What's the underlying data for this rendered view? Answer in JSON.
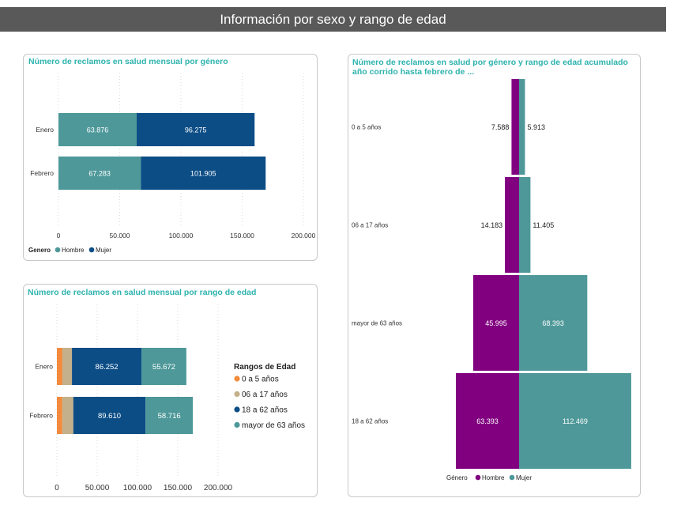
{
  "page": {
    "header": "Información por sexo y rango de edad"
  },
  "colors": {
    "hombre": "#4e9899",
    "mujer": "#0c4d86",
    "age_0_5": "#f28b3c",
    "age_6_17": "#c4b08a",
    "age_18_62": "#0c4d86",
    "age_63": "#4e9899",
    "funnel_hombre": "#80007f",
    "funnel_mujer": "#4e9899",
    "title": "#2eb3ae",
    "header_bg": "#595959"
  },
  "chart_data": [
    {
      "type": "bar",
      "stacked": true,
      "orientation": "horizontal",
      "title": "Número de reclamos en salud mensual por género",
      "categories": [
        "Enero",
        "Febrero"
      ],
      "series": [
        {
          "name": "Hombre",
          "values": [
            63876,
            67283
          ],
          "labels": [
            "63.876",
            "67.283"
          ]
        },
        {
          "name": "Mujer",
          "values": [
            96275,
            101905
          ],
          "labels": [
            "96.275",
            "101.905"
          ]
        }
      ],
      "xlim": [
        0,
        200000
      ],
      "xticks": [
        "0",
        "50.000",
        "100.000",
        "150.000",
        "200.000"
      ],
      "legend_title": "Genero",
      "legend": [
        "Hombre",
        "Mujer"
      ]
    },
    {
      "type": "bar",
      "stacked": true,
      "orientation": "horizontal",
      "title": "Número de reclamos en salud mensual por rango de edad",
      "categories": [
        "Enero",
        "Febrero"
      ],
      "series": [
        {
          "name": "0 a 5 años",
          "values": [
            6800,
            6700
          ],
          "labels": [
            "",
            ""
          ]
        },
        {
          "name": "06 a 17 años",
          "values": [
            11900,
            13700
          ],
          "labels": [
            "",
            ""
          ]
        },
        {
          "name": "18 a 62 años",
          "values": [
            86252,
            89610
          ],
          "labels": [
            "86.252",
            "89.610"
          ]
        },
        {
          "name": "mayor de 63 años",
          "values": [
            55672,
            58716
          ],
          "labels": [
            "55.672",
            "58.716"
          ]
        }
      ],
      "xlim": [
        0,
        200000
      ],
      "xticks": [
        "0",
        "50.000",
        "100.000",
        "150.000",
        "200.000"
      ],
      "legend_title": "Rangos de Edad",
      "legend": [
        "0 a 5 años",
        "06 a 17 años",
        "18 a 62 años",
        "mayor de 63 años"
      ]
    },
    {
      "type": "bar",
      "stacked": false,
      "orientation": "horizontal-diverging",
      "title": "Número de reclamos en salud por género y rango de edad acumulado año corrido hasta febrero de ...",
      "categories": [
        "0 a 5 años",
        "06 a 17 años",
        "mayor de 63 años",
        "18 a 62 años"
      ],
      "series": [
        {
          "name": "Hombre",
          "values": [
            7588,
            14183,
            45995,
            63393
          ],
          "labels": [
            "7.588",
            "14.183",
            "45.995",
            "63.393"
          ]
        },
        {
          "name": "Mujer",
          "values": [
            5913,
            11405,
            68393,
            112469
          ],
          "labels": [
            "5.913",
            "11.405",
            "68.393",
            "112.469"
          ]
        }
      ],
      "legend_title": "Género",
      "legend": [
        "Hombre",
        "Mujer"
      ]
    }
  ]
}
